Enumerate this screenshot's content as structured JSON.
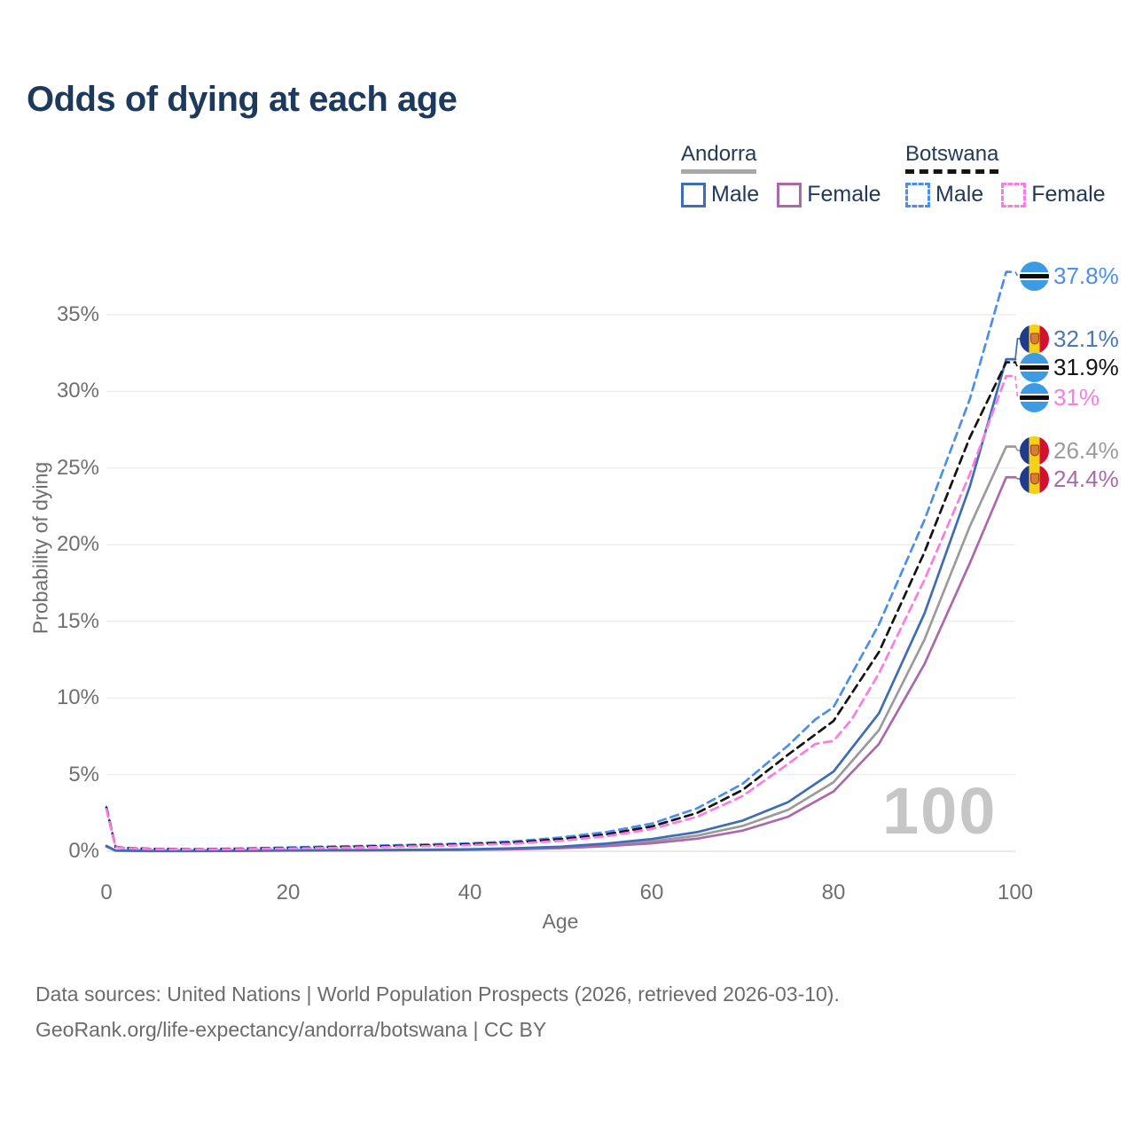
{
  "title": "Odds of dying at each age",
  "legend": {
    "groups": [
      {
        "id": "andorra",
        "label": "Andorra",
        "line_style": "solid",
        "underline_color": "#a8a8a8",
        "items": [
          {
            "id": "andorra_male",
            "label": "Male",
            "color": "#3d6eb4"
          },
          {
            "id": "andorra_female",
            "label": "Female",
            "color": "#ad6bad"
          }
        ]
      },
      {
        "id": "botswana",
        "label": "Botswana",
        "line_style": "dashed",
        "underline_color": "#141414",
        "items": [
          {
            "id": "botswana_male",
            "label": "Male",
            "color": "#4a8fee"
          },
          {
            "id": "botswana_female",
            "label": "Female",
            "color": "#fb7be4"
          }
        ]
      }
    ]
  },
  "chart_data": {
    "type": "line",
    "title": "Odds of dying at each age",
    "xlabel": "Age",
    "ylabel": "Probability of dying",
    "xlim": [
      0,
      100
    ],
    "ylim": [
      0,
      38.5
    ],
    "x_ticks": [
      0,
      20,
      40,
      60,
      80,
      100
    ],
    "y_tick_values": [
      0,
      5,
      10,
      15,
      20,
      25,
      30,
      35
    ],
    "y_tick_labels": [
      "0%",
      "5%",
      "10%",
      "15%",
      "20%",
      "25%",
      "30%",
      "35%"
    ],
    "grid": "horizontal",
    "legend_position": "top-right",
    "watermark": "100",
    "series": [
      {
        "id": "andorra_total",
        "name": "Andorra (both sexes)",
        "color": "#9b9b9b",
        "dash": false,
        "points": [
          [
            0,
            0.33
          ],
          [
            1,
            0.045
          ],
          [
            5,
            0.018
          ],
          [
            10,
            0.018
          ],
          [
            15,
            0.03
          ],
          [
            20,
            0.05
          ],
          [
            25,
            0.06
          ],
          [
            30,
            0.07
          ],
          [
            35,
            0.085
          ],
          [
            40,
            0.11
          ],
          [
            45,
            0.16
          ],
          [
            50,
            0.25
          ],
          [
            55,
            0.41
          ],
          [
            60,
            0.65
          ],
          [
            65,
            1.02
          ],
          [
            70,
            1.65
          ],
          [
            75,
            2.7
          ],
          [
            80,
            4.5
          ],
          [
            85,
            7.9
          ],
          [
            90,
            13.8
          ],
          [
            95,
            21.2
          ],
          [
            99,
            26.4
          ],
          [
            100,
            26.4
          ]
        ]
      },
      {
        "id": "andorra_female",
        "name": "Andorra Female",
        "color": "#ab68ab",
        "dash": false,
        "points": [
          [
            0,
            0.3
          ],
          [
            1,
            0.04
          ],
          [
            5,
            0.015
          ],
          [
            10,
            0.015
          ],
          [
            15,
            0.025
          ],
          [
            20,
            0.04
          ],
          [
            25,
            0.05
          ],
          [
            30,
            0.06
          ],
          [
            35,
            0.07
          ],
          [
            40,
            0.09
          ],
          [
            45,
            0.13
          ],
          [
            50,
            0.2
          ],
          [
            55,
            0.33
          ],
          [
            60,
            0.52
          ],
          [
            65,
            0.82
          ],
          [
            70,
            1.35
          ],
          [
            75,
            2.25
          ],
          [
            80,
            3.9
          ],
          [
            85,
            7.0
          ],
          [
            90,
            12.2
          ],
          [
            95,
            18.8
          ],
          [
            99,
            24.4
          ],
          [
            100,
            24.4
          ]
        ]
      },
      {
        "id": "andorra_male",
        "name": "Andorra Male",
        "color": "#3d6eb4",
        "dash": false,
        "points": [
          [
            0,
            0.35
          ],
          [
            1,
            0.05
          ],
          [
            5,
            0.02
          ],
          [
            10,
            0.02
          ],
          [
            15,
            0.04
          ],
          [
            20,
            0.06
          ],
          [
            25,
            0.07
          ],
          [
            30,
            0.08
          ],
          [
            35,
            0.1
          ],
          [
            40,
            0.13
          ],
          [
            45,
            0.2
          ],
          [
            50,
            0.3
          ],
          [
            55,
            0.5
          ],
          [
            60,
            0.8
          ],
          [
            65,
            1.25
          ],
          [
            70,
            2.0
          ],
          [
            75,
            3.2
          ],
          [
            80,
            5.2
          ],
          [
            85,
            9.0
          ],
          [
            90,
            15.5
          ],
          [
            95,
            23.8
          ],
          [
            99,
            32.1
          ],
          [
            100,
            32.1
          ]
        ]
      },
      {
        "id": "botswana_male",
        "name": "Botswana Male",
        "color": "#4a8fee",
        "dash": true,
        "points": [
          [
            0,
            2.9
          ],
          [
            1,
            0.3
          ],
          [
            2,
            0.22
          ],
          [
            5,
            0.16
          ],
          [
            10,
            0.14
          ],
          [
            15,
            0.18
          ],
          [
            20,
            0.25
          ],
          [
            25,
            0.31
          ],
          [
            30,
            0.37
          ],
          [
            35,
            0.44
          ],
          [
            40,
            0.52
          ],
          [
            45,
            0.65
          ],
          [
            50,
            0.9
          ],
          [
            55,
            1.25
          ],
          [
            60,
            1.8
          ],
          [
            65,
            2.8
          ],
          [
            70,
            4.4
          ],
          [
            75,
            6.9
          ],
          [
            78,
            8.6
          ],
          [
            80,
            9.4
          ],
          [
            85,
            14.8
          ],
          [
            90,
            21.6
          ],
          [
            95,
            29.5
          ],
          [
            99,
            37.8
          ],
          [
            100,
            37.8
          ]
        ]
      },
      {
        "id": "botswana_total",
        "name": "Botswana (both sexes)",
        "color": "#141414",
        "dash": true,
        "points": [
          [
            0,
            2.82
          ],
          [
            1,
            0.29
          ],
          [
            2,
            0.21
          ],
          [
            5,
            0.15
          ],
          [
            10,
            0.13
          ],
          [
            15,
            0.16
          ],
          [
            20,
            0.21
          ],
          [
            25,
            0.26
          ],
          [
            30,
            0.32
          ],
          [
            35,
            0.38
          ],
          [
            40,
            0.46
          ],
          [
            45,
            0.57
          ],
          [
            50,
            0.79
          ],
          [
            55,
            1.1
          ],
          [
            60,
            1.62
          ],
          [
            65,
            2.5
          ],
          [
            70,
            4.0
          ],
          [
            75,
            6.3
          ],
          [
            80,
            8.5
          ],
          [
            85,
            13.0
          ],
          [
            90,
            19.5
          ],
          [
            95,
            27.0
          ],
          [
            99,
            31.9
          ],
          [
            100,
            31.9
          ]
        ]
      },
      {
        "id": "botswana_female",
        "name": "Botswana Female",
        "color": "#fb7be4",
        "dash": true,
        "points": [
          [
            0,
            2.75
          ],
          [
            1,
            0.28
          ],
          [
            2,
            0.2
          ],
          [
            5,
            0.14
          ],
          [
            10,
            0.12
          ],
          [
            15,
            0.14
          ],
          [
            20,
            0.18
          ],
          [
            25,
            0.22
          ],
          [
            30,
            0.27
          ],
          [
            35,
            0.33
          ],
          [
            40,
            0.4
          ],
          [
            45,
            0.5
          ],
          [
            50,
            0.68
          ],
          [
            55,
            0.98
          ],
          [
            60,
            1.45
          ],
          [
            65,
            2.25
          ],
          [
            70,
            3.6
          ],
          [
            75,
            5.7
          ],
          [
            78,
            7.0
          ],
          [
            80,
            7.2
          ],
          [
            82,
            8.6
          ],
          [
            85,
            11.6
          ],
          [
            90,
            17.7
          ],
          [
            95,
            24.6
          ],
          [
            99,
            31.0
          ],
          [
            100,
            31.0
          ]
        ]
      }
    ]
  },
  "end_labels": [
    {
      "series": "botswana_male",
      "text": "37.8%",
      "value": 37.8,
      "color": "#4a8fee",
      "flag": "botswana"
    },
    {
      "series": "andorra_male",
      "text": "32.1%",
      "value": 32.1,
      "color": "#4a77b8",
      "flag": "andorra"
    },
    {
      "series": "botswana_total",
      "text": "31.9%",
      "value": 31.9,
      "color": "#141414",
      "flag": "botswana"
    },
    {
      "series": "botswana_female",
      "text": "31%",
      "value": 31.0,
      "color": "#fb7be4",
      "flag": "botswana"
    },
    {
      "series": "andorra_total",
      "text": "26.4%",
      "value": 26.4,
      "color": "#9b9b9b",
      "flag": "andorra"
    },
    {
      "series": "andorra_female",
      "text": "24.4%",
      "value": 24.4,
      "color": "#ab68ab",
      "flag": "andorra"
    }
  ],
  "footer": {
    "line1": "Data sources: United Nations | World Population Prospects (2026, retrieved 2026-03-10).",
    "line2": "GeoRank.org/life-expectancy/andorra/botswana | CC BY"
  }
}
